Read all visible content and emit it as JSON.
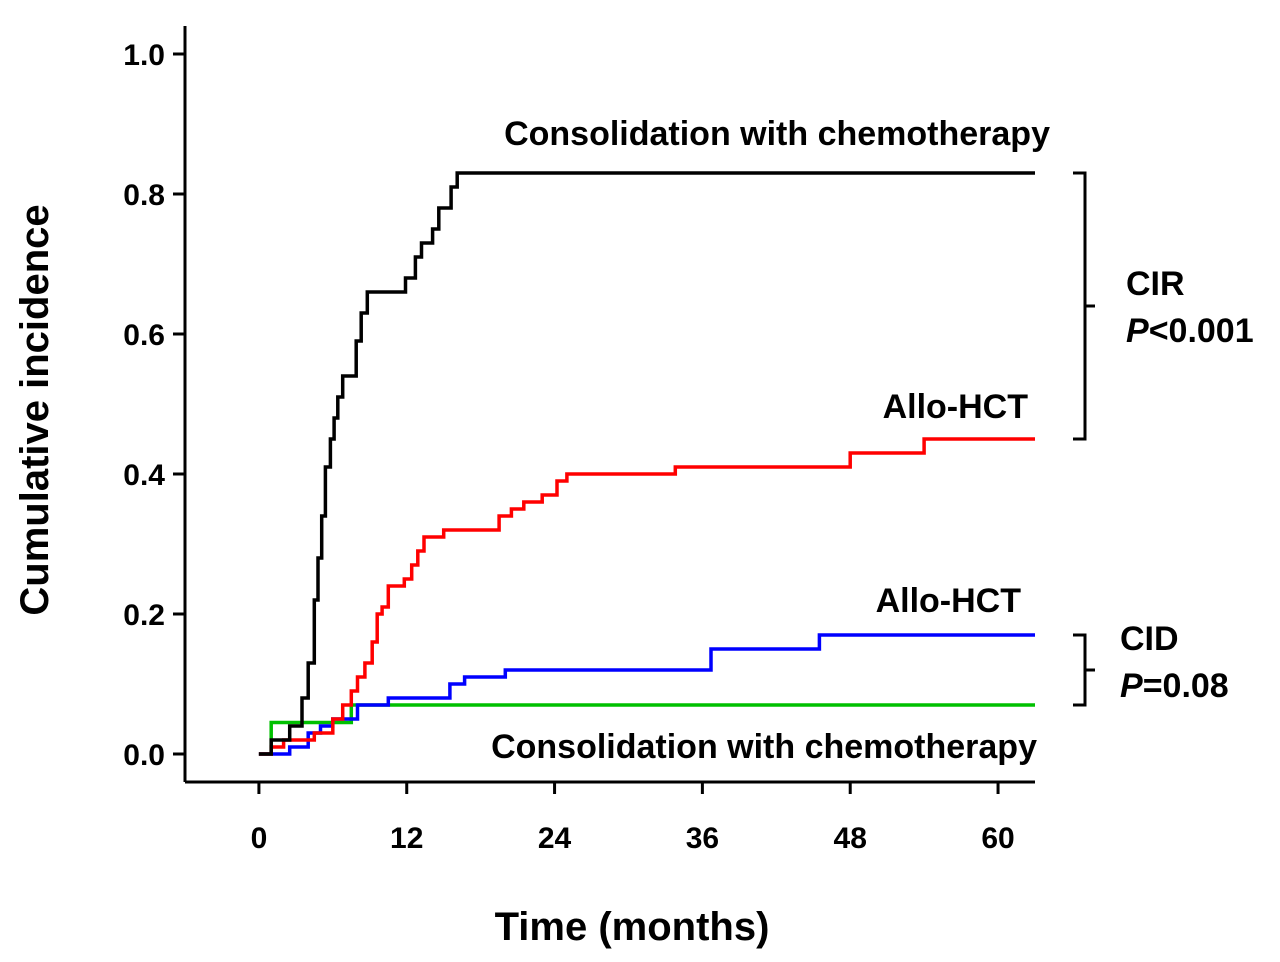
{
  "chart_data": {
    "type": "line",
    "step": true,
    "xlabel": "Time (months)",
    "ylabel": "Cumulative incidence",
    "xlim": [
      -6,
      63
    ],
    "ylim": [
      -0.04,
      1.04
    ],
    "xticks": [
      0,
      12,
      24,
      36,
      48,
      60
    ],
    "yticks": [
      0.0,
      0.2,
      0.4,
      0.6,
      0.8,
      1.0
    ],
    "ytick_labels": [
      "0.0",
      "0.2",
      "0.4",
      "0.6",
      "0.8",
      "1.0"
    ],
    "series": [
      {
        "name": "CIR - Consolidation with chemotherapy",
        "color": "#000000",
        "label": "Consolidation with chemotherapy",
        "points": [
          [
            0,
            0
          ],
          [
            1,
            0
          ],
          [
            1,
            0.02
          ],
          [
            2.5,
            0.02
          ],
          [
            2.5,
            0.04
          ],
          [
            3.5,
            0.04
          ],
          [
            3.5,
            0.08
          ],
          [
            4,
            0.08
          ],
          [
            4,
            0.13
          ],
          [
            4.5,
            0.13
          ],
          [
            4.5,
            0.22
          ],
          [
            4.8,
            0.22
          ],
          [
            4.8,
            0.28
          ],
          [
            5.1,
            0.28
          ],
          [
            5.1,
            0.34
          ],
          [
            5.4,
            0.34
          ],
          [
            5.4,
            0.41
          ],
          [
            5.8,
            0.41
          ],
          [
            5.8,
            0.45
          ],
          [
            6.1,
            0.45
          ],
          [
            6.1,
            0.48
          ],
          [
            6.4,
            0.48
          ],
          [
            6.4,
            0.51
          ],
          [
            6.8,
            0.51
          ],
          [
            6.8,
            0.54
          ],
          [
            7.9,
            0.54
          ],
          [
            7.9,
            0.59
          ],
          [
            8.3,
            0.59
          ],
          [
            8.3,
            0.63
          ],
          [
            8.8,
            0.63
          ],
          [
            8.8,
            0.66
          ],
          [
            11.9,
            0.66
          ],
          [
            11.9,
            0.68
          ],
          [
            12.7,
            0.68
          ],
          [
            12.7,
            0.71
          ],
          [
            13.2,
            0.71
          ],
          [
            13.2,
            0.73
          ],
          [
            14.1,
            0.73
          ],
          [
            14.1,
            0.75
          ],
          [
            14.6,
            0.75
          ],
          [
            14.6,
            0.78
          ],
          [
            15.6,
            0.78
          ],
          [
            15.6,
            0.81
          ],
          [
            16.1,
            0.81
          ],
          [
            16.1,
            0.83
          ],
          [
            63,
            0.83
          ]
        ]
      },
      {
        "name": "CIR - Allo-HCT",
        "color": "#ff0000",
        "label": "Allo-HCT",
        "points": [
          [
            0,
            0
          ],
          [
            1,
            0
          ],
          [
            1,
            0.01
          ],
          [
            2,
            0.01
          ],
          [
            2,
            0.02
          ],
          [
            4.5,
            0.02
          ],
          [
            4.5,
            0.03
          ],
          [
            6,
            0.03
          ],
          [
            6,
            0.05
          ],
          [
            6.8,
            0.05
          ],
          [
            6.8,
            0.07
          ],
          [
            7.5,
            0.07
          ],
          [
            7.5,
            0.09
          ],
          [
            8,
            0.09
          ],
          [
            8,
            0.11
          ],
          [
            8.6,
            0.11
          ],
          [
            8.6,
            0.13
          ],
          [
            9.2,
            0.13
          ],
          [
            9.2,
            0.16
          ],
          [
            9.6,
            0.16
          ],
          [
            9.6,
            0.2
          ],
          [
            10,
            0.2
          ],
          [
            10,
            0.21
          ],
          [
            10.5,
            0.21
          ],
          [
            10.5,
            0.24
          ],
          [
            11.8,
            0.24
          ],
          [
            11.8,
            0.25
          ],
          [
            12.4,
            0.25
          ],
          [
            12.4,
            0.27
          ],
          [
            12.9,
            0.27
          ],
          [
            12.9,
            0.29
          ],
          [
            13.4,
            0.29
          ],
          [
            13.4,
            0.31
          ],
          [
            15,
            0.31
          ],
          [
            15,
            0.32
          ],
          [
            19.5,
            0.32
          ],
          [
            19.5,
            0.34
          ],
          [
            20.5,
            0.34
          ],
          [
            20.5,
            0.35
          ],
          [
            21.5,
            0.35
          ],
          [
            21.5,
            0.36
          ],
          [
            23,
            0.36
          ],
          [
            23,
            0.37
          ],
          [
            24.2,
            0.37
          ],
          [
            24.2,
            0.39
          ],
          [
            25,
            0.39
          ],
          [
            25,
            0.4
          ],
          [
            33.8,
            0.4
          ],
          [
            33.8,
            0.41
          ],
          [
            48,
            0.41
          ],
          [
            48,
            0.43
          ],
          [
            54,
            0.43
          ],
          [
            54,
            0.45
          ],
          [
            63,
            0.45
          ]
        ]
      },
      {
        "name": "CID - Allo-HCT",
        "color": "#0000ff",
        "label": "Allo-HCT",
        "points": [
          [
            0,
            0
          ],
          [
            2.5,
            0
          ],
          [
            2.5,
            0.01
          ],
          [
            4,
            0.01
          ],
          [
            4,
            0.03
          ],
          [
            5,
            0.03
          ],
          [
            5,
            0.04
          ],
          [
            6,
            0.04
          ],
          [
            6,
            0.05
          ],
          [
            8,
            0.05
          ],
          [
            8,
            0.07
          ],
          [
            10.5,
            0.07
          ],
          [
            10.5,
            0.08
          ],
          [
            15.5,
            0.08
          ],
          [
            15.5,
            0.1
          ],
          [
            16.7,
            0.1
          ],
          [
            16.7,
            0.11
          ],
          [
            20,
            0.11
          ],
          [
            20,
            0.12
          ],
          [
            36.7,
            0.12
          ],
          [
            36.7,
            0.15
          ],
          [
            45.5,
            0.15
          ],
          [
            45.5,
            0.17
          ],
          [
            63,
            0.17
          ]
        ]
      },
      {
        "name": "CID - Consolidation with chemotherapy",
        "color": "#00c000",
        "label": "Consolidation with chemotherapy",
        "points": [
          [
            0,
            0
          ],
          [
            1,
            0
          ],
          [
            1,
            0.045
          ],
          [
            7.5,
            0.045
          ],
          [
            7.5,
            0.07
          ],
          [
            63,
            0.07
          ]
        ]
      }
    ],
    "brackets": [
      {
        "name": "CIR",
        "p_symbol": "P",
        "p_value": "<0.001",
        "y_top": 0.83,
        "y_bottom": 0.45
      },
      {
        "name": "CID",
        "p_symbol": "P",
        "p_value": "=0.08",
        "y_top": 0.17,
        "y_bottom": 0.07
      }
    ]
  }
}
